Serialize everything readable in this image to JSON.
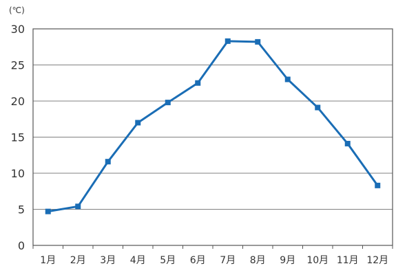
{
  "chart_data": {
    "type": "line",
    "unit": "(℃)",
    "categories": [
      "1月",
      "2月",
      "3月",
      "4月",
      "5月",
      "6月",
      "7月",
      "8月",
      "9月",
      "10月",
      "11月",
      "12月"
    ],
    "values": [
      4.7,
      5.4,
      11.6,
      17.0,
      19.8,
      22.5,
      28.3,
      28.2,
      23.0,
      19.1,
      14.1,
      8.3
    ],
    "y_ticks": [
      "0",
      "5",
      "10",
      "15",
      "20",
      "25",
      "30"
    ],
    "ylim": [
      0,
      30
    ],
    "grid": true,
    "colors": {
      "line": "#1a6db5",
      "grid": "#808080",
      "axis": "#555555"
    }
  }
}
